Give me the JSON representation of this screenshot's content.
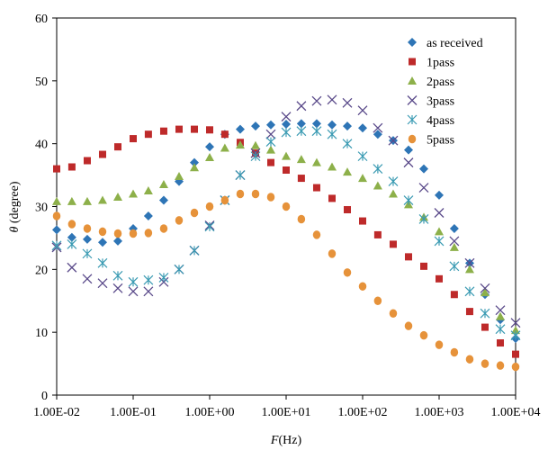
{
  "chart_data": {
    "type": "scatter",
    "title": "",
    "xlabel": "F(Hz)",
    "xlabel_italic": "F",
    "xlabel_rest": "(Hz)",
    "ylabel": "θ (degree)",
    "ylabel_italic": "θ",
    "ylabel_rest": " (degree)",
    "xscale": "log",
    "xlim": [
      0.01,
      10000
    ],
    "ylim": [
      0,
      60
    ],
    "xticks": [
      0.01,
      0.1,
      1,
      10,
      100,
      1000,
      10000
    ],
    "xtick_labels": [
      "1.00E-02",
      "1.00E-01",
      "1.00E+00",
      "1.00E+01",
      "1.00E+02",
      "1.00E+03",
      "1.00E+04"
    ],
    "yticks": [
      0,
      10,
      20,
      30,
      40,
      50,
      60
    ],
    "ytick_labels": [
      "0",
      "10",
      "20",
      "30",
      "40",
      "50",
      "60"
    ],
    "grid": false,
    "legend_position": "top-right",
    "x": [
      0.01,
      0.0158,
      0.0251,
      0.0398,
      0.0631,
      0.1,
      0.158,
      0.251,
      0.398,
      0.631,
      1,
      1.58,
      2.51,
      3.98,
      6.31,
      10,
      15.8,
      25.1,
      39.8,
      63.1,
      100,
      158,
      251,
      398,
      631,
      1000,
      1580,
      2510,
      3980,
      6310,
      10000
    ],
    "series": [
      {
        "name": "as received",
        "marker": "diamond",
        "color": "#2e75b6",
        "values": [
          26.3,
          25.1,
          24.8,
          24.3,
          24.5,
          26.5,
          28.5,
          31.0,
          34.0,
          37.0,
          39.5,
          41.5,
          42.3,
          42.8,
          43.0,
          43.1,
          43.2,
          43.2,
          43.0,
          42.8,
          42.5,
          41.5,
          40.5,
          39.0,
          36.0,
          31.8,
          26.5,
          21.0,
          16.0,
          12.0,
          9.0
        ]
      },
      {
        "name": "1pass",
        "marker": "square",
        "color": "#be2a2a",
        "values": [
          36.0,
          36.3,
          37.3,
          38.3,
          39.5,
          40.8,
          41.5,
          42.0,
          42.3,
          42.3,
          42.2,
          41.5,
          40.2,
          38.5,
          37.0,
          35.8,
          34.5,
          33.0,
          31.3,
          29.5,
          27.7,
          25.5,
          24.0,
          22.0,
          20.5,
          18.5,
          16.0,
          13.3,
          10.8,
          8.3,
          6.5
        ]
      },
      {
        "name": "2pass",
        "marker": "triangle",
        "color": "#8db04a",
        "values": [
          30.8,
          30.8,
          30.8,
          31.0,
          31.5,
          32.0,
          32.5,
          33.5,
          34.8,
          36.2,
          37.8,
          39.3,
          39.8,
          39.7,
          39.0,
          38.0,
          37.5,
          37.0,
          36.3,
          35.5,
          34.5,
          33.3,
          32.0,
          30.3,
          28.3,
          26.0,
          23.5,
          20.0,
          16.3,
          12.5,
          10.3
        ]
      },
      {
        "name": "3pass",
        "marker": "x",
        "color": "#5a4a8a",
        "values": [
          23.5,
          20.3,
          18.5,
          17.8,
          17.0,
          16.5,
          16.5,
          18.0,
          20.0,
          23.0,
          27.0,
          31.0,
          35.0,
          38.5,
          41.5,
          44.3,
          46.0,
          46.8,
          47.0,
          46.5,
          45.3,
          42.5,
          40.5,
          37.0,
          33.0,
          29.0,
          24.5,
          21.0,
          17.0,
          13.5,
          11.5
        ]
      },
      {
        "name": "4pass",
        "marker": "asterisk",
        "color": "#3b9bb3",
        "values": [
          23.8,
          24.0,
          22.5,
          21.0,
          19.0,
          18.0,
          18.3,
          18.7,
          20.0,
          23.0,
          26.8,
          31.0,
          35.0,
          38.0,
          40.3,
          41.8,
          42.0,
          42.0,
          41.5,
          40.0,
          38.0,
          36.0,
          34.0,
          31.0,
          28.0,
          24.5,
          20.5,
          16.5,
          13.0,
          10.5,
          9.5
        ]
      },
      {
        "name": "5pass",
        "marker": "circle",
        "color": "#e6923a",
        "values": [
          28.5,
          27.2,
          26.5,
          26.0,
          25.7,
          25.7,
          25.8,
          26.5,
          27.8,
          29.0,
          30.0,
          31.0,
          32.0,
          32.0,
          31.5,
          30.0,
          28.0,
          25.5,
          22.5,
          19.5,
          17.3,
          15.0,
          13.0,
          11.0,
          9.5,
          8.0,
          6.8,
          5.7,
          5.0,
          4.7,
          4.5
        ]
      }
    ]
  }
}
